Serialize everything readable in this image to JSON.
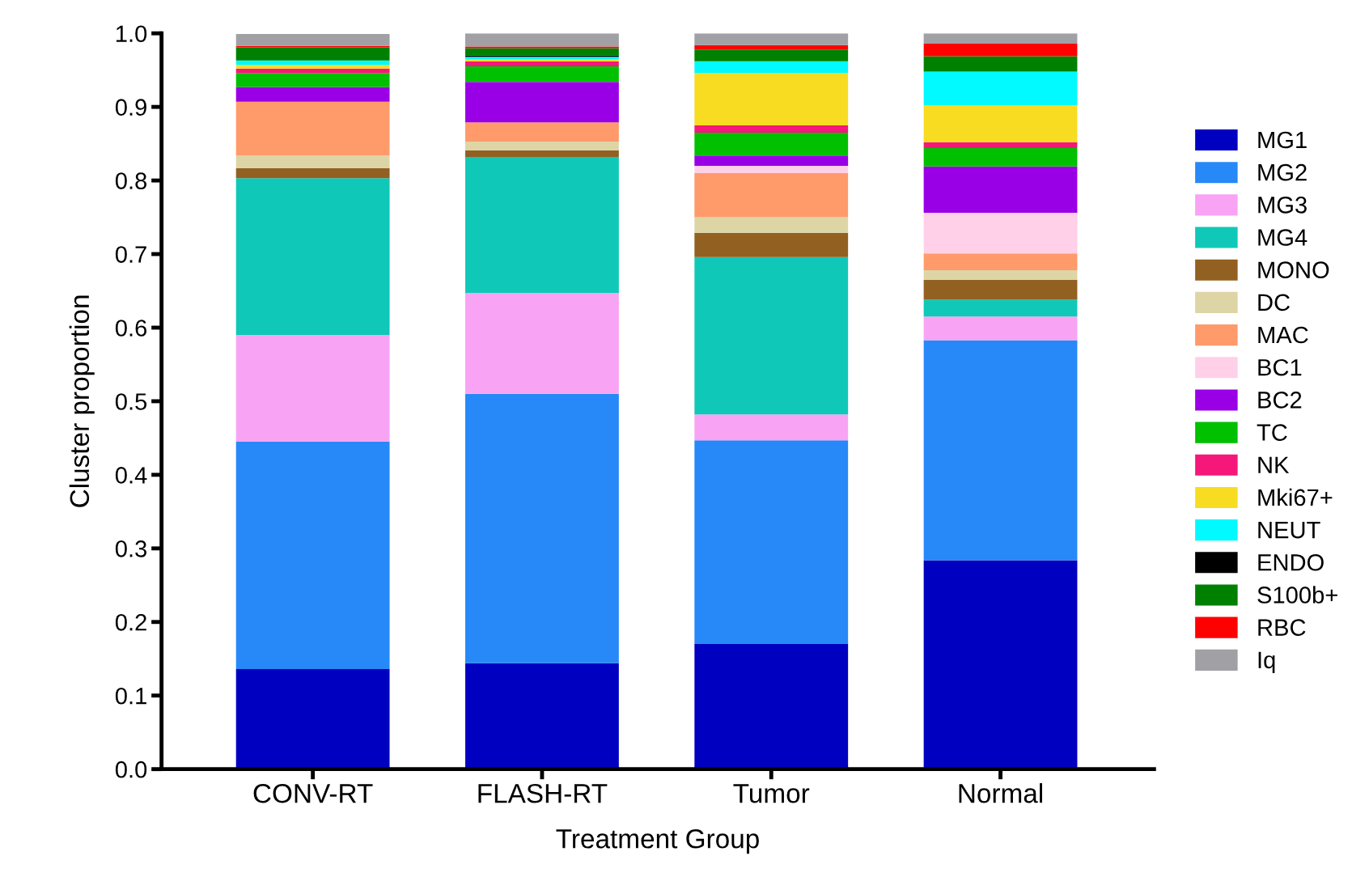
{
  "chart_data": {
    "type": "bar",
    "stacked": true,
    "xlabel": "Treatment Group",
    "ylabel": "Cluster proportion",
    "categories": [
      "CONV-RT",
      "FLASH-RT",
      "Tumor",
      "Normal"
    ],
    "ylim": [
      0,
      1.0
    ],
    "yticks": [
      {
        "value": 0,
        "label": "0.0"
      },
      0.1,
      0.2,
      0.3,
      0.4,
      0.5,
      0.6,
      0.7,
      0.8,
      0.9,
      {
        "value": 1,
        "label": "1.0"
      }
    ],
    "grid": false,
    "legend": "right",
    "series": [
      {
        "name": "MG1",
        "color": "#0000c0",
        "values": [
          0.136,
          0.144,
          0.17,
          0.284
        ]
      },
      {
        "name": "MG2",
        "color": "#2788f8",
        "values": [
          0.309,
          0.366,
          0.277,
          0.299
        ]
      },
      {
        "name": "MG3",
        "color": "#f9a3f5",
        "values": [
          0.145,
          0.137,
          0.035,
          0.032
        ]
      },
      {
        "name": "MG4",
        "color": "#10c8b8",
        "values": [
          0.213,
          0.185,
          0.214,
          0.023
        ]
      },
      {
        "name": "MONO",
        "color": "#926020",
        "values": [
          0.014,
          0.009,
          0.033,
          0.027
        ]
      },
      {
        "name": "DC",
        "color": "#ddd5a5",
        "values": [
          0.017,
          0.012,
          0.021,
          0.013
        ]
      },
      {
        "name": "MAC",
        "color": "#ff9a6b",
        "values": [
          0.073,
          0.026,
          0.06,
          0.023
        ]
      },
      {
        "name": "BC1",
        "color": "#ffd0e8",
        "values": [
          0,
          0,
          0.01,
          0.055
        ]
      },
      {
        "name": "BC2",
        "color": "#9a00e6",
        "values": [
          0.02,
          0.055,
          0.014,
          0.063
        ]
      },
      {
        "name": "TC",
        "color": "#00c000",
        "values": [
          0.019,
          0.021,
          0.031,
          0.025
        ]
      },
      {
        "name": "NK",
        "color": "#f5177a",
        "values": [
          0.006,
          0.007,
          0.01,
          0.008
        ]
      },
      {
        "name": "Mki67+",
        "color": "#f8dc22",
        "values": [
          0.005,
          0.003,
          0.071,
          0.05
        ]
      },
      {
        "name": "NEUT",
        "color": "#00faff",
        "values": [
          0.006,
          0.003,
          0.016,
          0.046
        ]
      },
      {
        "name": "ENDO",
        "color": "#000000",
        "values": [
          0,
          0.002,
          0,
          0
        ]
      },
      {
        "name": "S100b+",
        "color": "#008000",
        "values": [
          0.018,
          0.01,
          0.016,
          0.021
        ]
      },
      {
        "name": "RBC",
        "color": "#ff0000",
        "values": [
          0.002,
          0.002,
          0.006,
          0.017
        ]
      },
      {
        "name": "Iq",
        "color": "#a0a0a5",
        "values": [
          0.016,
          0.018,
          0.016,
          0.014
        ]
      }
    ]
  }
}
